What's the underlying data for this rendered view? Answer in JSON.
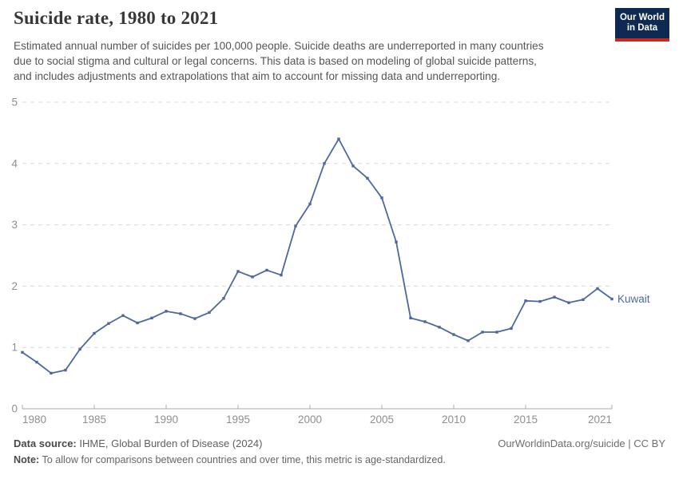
{
  "header": {
    "title": "Suicide rate, 1980 to 2021",
    "subtitle_lines": [
      "Estimated annual number of suicides per 100,000 people. Suicide deaths are underreported in many countries",
      "due to social stigma and cultural or legal concerns. This data is based on modeling of global suicide patterns,",
      "and includes adjustments and extrapolations that aim to account for missing data and underreporting."
    ],
    "logo": {
      "line1": "Our World",
      "line2": "in Data",
      "bg_color": "#0e2a52",
      "accent_color": "#cd261b"
    }
  },
  "chart_data": {
    "type": "line",
    "title": "Suicide rate, 1980 to 2021",
    "xlabel": "",
    "ylabel": "",
    "xlim": [
      1980,
      2021
    ],
    "ylim": [
      0,
      5
    ],
    "x_ticks": [
      1980,
      1985,
      1990,
      1995,
      2000,
      2005,
      2010,
      2015,
      2021
    ],
    "y_ticks": [
      0,
      1,
      2,
      3,
      4,
      5
    ],
    "grid": "horizontal-dashed",
    "legend_position": "end-of-line-label",
    "series": [
      {
        "name": "Kuwait",
        "color": "#4d68a0",
        "x": [
          1980,
          1981,
          1982,
          1983,
          1984,
          1985,
          1986,
          1987,
          1988,
          1989,
          1990,
          1991,
          1992,
          1993,
          1994,
          1995,
          1996,
          1997,
          1998,
          1999,
          2000,
          2001,
          2002,
          2003,
          2004,
          2005,
          2006,
          2007,
          2008,
          2009,
          2010,
          2011,
          2012,
          2013,
          2014,
          2015,
          2016,
          2017,
          2018,
          2019,
          2020,
          2021
        ],
        "values": [
          0.92,
          0.76,
          0.58,
          0.63,
          0.97,
          1.23,
          1.39,
          1.52,
          1.4,
          1.48,
          1.59,
          1.55,
          1.47,
          1.57,
          1.8,
          2.24,
          2.15,
          2.26,
          2.18,
          2.98,
          3.34,
          4.0,
          4.4,
          3.96,
          3.76,
          3.44,
          2.72,
          1.48,
          1.42,
          1.33,
          1.21,
          1.11,
          1.25,
          1.25,
          1.31,
          1.76,
          1.75,
          1.82,
          1.73,
          1.78,
          1.96,
          1.79
        ]
      }
    ]
  },
  "footer": {
    "datasource_label": "Data source:",
    "datasource_text": " IHME, Global Burden of Disease (2024)",
    "attribution": "OurWorldinData.org/suicide | CC BY",
    "note_label": "Note:",
    "note_text": " To allow for comparisons between countries and over time, this metric is age-standardized."
  },
  "colors": {
    "line": "#4d68a0",
    "grid": "#dadada",
    "axis": "#a8a8a8",
    "tick_label": "#8f8f8f",
    "title": "#383838",
    "subtitle": "#555555"
  }
}
